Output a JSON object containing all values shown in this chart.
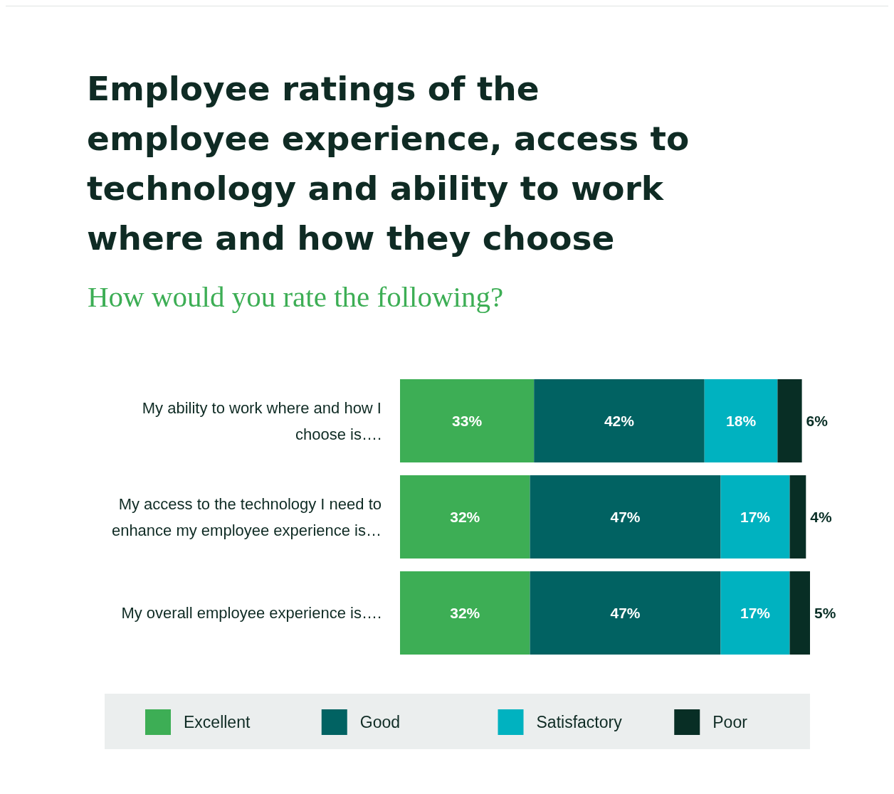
{
  "chart_data": {
    "type": "bar",
    "orientation": "horizontal",
    "stacked": true,
    "title": "Employee ratings of the employee experience, access to technology and ability to work where and how they choose",
    "subtitle": "How would you rate the following?",
    "categories": [
      "My ability to work where and how I choose is….",
      "My access to the technology I need to enhance my employee experience is…",
      "My overall employee experience is…."
    ],
    "series": [
      {
        "name": "Excellent",
        "color": "#3dae55",
        "values": [
          33,
          32,
          32
        ],
        "value_labels": [
          "33%",
          "32%",
          "32%"
        ]
      },
      {
        "name": "Good",
        "color": "#016262",
        "values": [
          42,
          47,
          47
        ],
        "value_labels": [
          "42%",
          "47%",
          "47%"
        ]
      },
      {
        "name": "Satisfactory",
        "color": "#00b2c0",
        "values": [
          18,
          17,
          17
        ],
        "value_labels": [
          "18%",
          "17%",
          "17%"
        ]
      },
      {
        "name": "Poor",
        "color": "#082e25",
        "values": [
          6,
          4,
          5
        ],
        "value_labels": [
          "6%",
          "4%",
          "5%"
        ]
      }
    ],
    "legend": "bottom"
  }
}
